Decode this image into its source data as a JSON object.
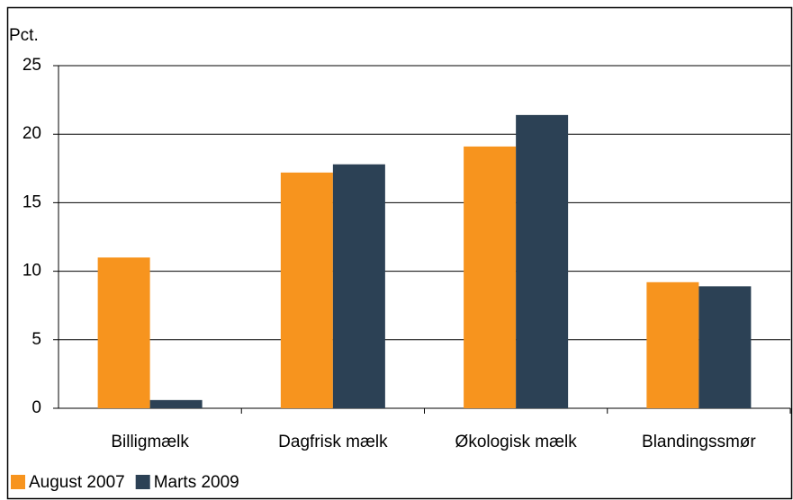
{
  "chart_data": {
    "type": "bar",
    "y_label": "Pct.",
    "categories": [
      "Billigmælk",
      "Dagfrisk mælk",
      "Økologisk mælk",
      "Blandingssmør"
    ],
    "series": [
      {
        "name": "August 2007",
        "color": "#f7941e",
        "values": [
          11.0,
          17.2,
          19.1,
          9.2
        ]
      },
      {
        "name": "Marts 2009",
        "color": "#2c4155",
        "values": [
          0.6,
          17.8,
          21.4,
          8.9
        ]
      }
    ],
    "ylim": [
      0,
      25
    ],
    "yticks": [
      0,
      5,
      10,
      15,
      20,
      25
    ],
    "grid": true,
    "legend": "bottom-left"
  }
}
